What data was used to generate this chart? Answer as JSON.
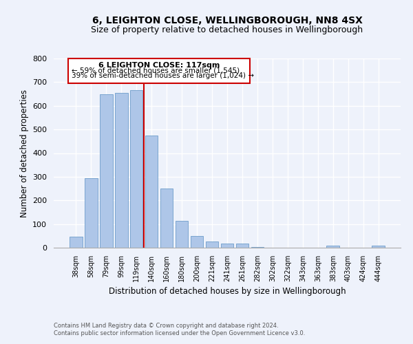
{
  "title": "6, LEIGHTON CLOSE, WELLINGBOROUGH, NN8 4SX",
  "subtitle": "Size of property relative to detached houses in Wellingborough",
  "xlabel": "Distribution of detached houses by size in Wellingborough",
  "ylabel": "Number of detached properties",
  "categories": [
    "38sqm",
    "58sqm",
    "79sqm",
    "99sqm",
    "119sqm",
    "140sqm",
    "160sqm",
    "180sqm",
    "200sqm",
    "221sqm",
    "241sqm",
    "261sqm",
    "282sqm",
    "302sqm",
    "322sqm",
    "343sqm",
    "363sqm",
    "383sqm",
    "403sqm",
    "424sqm",
    "444sqm"
  ],
  "values": [
    47,
    295,
    650,
    655,
    665,
    475,
    250,
    113,
    50,
    27,
    18,
    17,
    3,
    1,
    0,
    1,
    0,
    8,
    1,
    0,
    8
  ],
  "bar_color": "#aec6e8",
  "bar_edge_color": "#5a8fc2",
  "highlight_color": "#cc0000",
  "vline_x": 4.5,
  "annotation_title": "6 LEIGHTON CLOSE: 117sqm",
  "annotation_line1": "← 59% of detached houses are smaller (1,545)",
  "annotation_line2": "39% of semi-detached houses are larger (1,024) →",
  "annotation_box_color": "#cc0000",
  "ylim": [
    0,
    800
  ],
  "yticks": [
    0,
    100,
    200,
    300,
    400,
    500,
    600,
    700,
    800
  ],
  "footer_line1": "Contains HM Land Registry data © Crown copyright and database right 2024.",
  "footer_line2": "Contains public sector information licensed under the Open Government Licence v3.0.",
  "bg_color": "#eef2fb",
  "grid_color": "#ffffff",
  "title_fontsize": 10,
  "subtitle_fontsize": 9
}
